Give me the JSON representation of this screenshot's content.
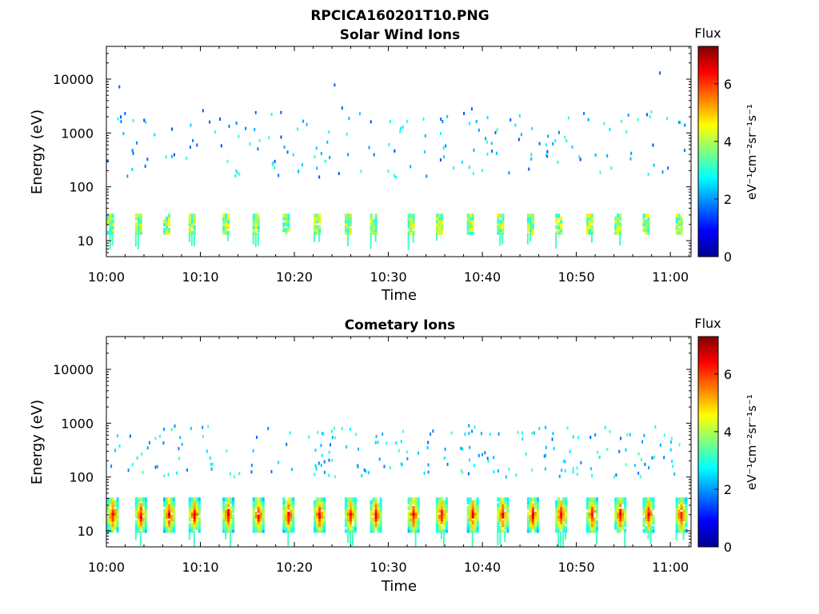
{
  "figure": {
    "filename_title": "RPCICA160201T10.PNG"
  },
  "chart_data": [
    {
      "type": "heatmap",
      "title": "Solar Wind Ions",
      "xlabel": "Time",
      "ylabel": "Energy (eV)",
      "y_scale": "log",
      "x_ticks": [
        "10:00",
        "10:10",
        "10:20",
        "10:30",
        "10:40",
        "10:50",
        "11:00"
      ],
      "y_ticks": [
        "10",
        "100",
        "1000",
        "10000"
      ],
      "colorbar": {
        "title": "Flux",
        "unit": "eV⁻¹cm⁻²sr⁻¹s⁻¹",
        "ticks": [
          "0",
          "2",
          "4",
          "6"
        ],
        "range": [
          0,
          7.3
        ],
        "colormap": "jet"
      },
      "grid": false,
      "cycles_minutes": [
        0.5,
        3.5,
        6.5,
        9.2,
        12.8,
        16.0,
        19.2,
        22.5,
        25.8,
        28.5,
        32.5,
        35.5,
        38.8,
        42.0,
        45.2,
        48.2,
        51.5,
        54.5,
        57.5,
        61.0
      ],
      "low_band_eV": [
        14,
        32
      ],
      "low_band_level": 3.6,
      "scatter_minutes": [
        1,
        2,
        3,
        4,
        5,
        6,
        7,
        8,
        9,
        10,
        11,
        12,
        13,
        16,
        17,
        18,
        19,
        20,
        21,
        22,
        23,
        24,
        25,
        26,
        27,
        28,
        29,
        30,
        31,
        32,
        33,
        34,
        35,
        36,
        37,
        38,
        39,
        40,
        41,
        42,
        43,
        44,
        45,
        46,
        47,
        48,
        54,
        55,
        56,
        57,
        58,
        59,
        60,
        61
      ],
      "scatter_energy_range_eV": [
        150,
        2500
      ],
      "scatter_level": 2.3
    },
    {
      "type": "heatmap",
      "title": "Cometary Ions",
      "xlabel": "Time",
      "ylabel": "Energy (eV)",
      "y_scale": "log",
      "x_ticks": [
        "10:00",
        "10:10",
        "10:20",
        "10:30",
        "10:40",
        "10:50",
        "11:00"
      ],
      "y_ticks": [
        "10",
        "100",
        "1000",
        "10000"
      ],
      "colorbar": {
        "title": "Flux",
        "unit": "eV⁻¹cm⁻²sr⁻¹s⁻¹",
        "ticks": [
          "0",
          "2",
          "4",
          "6"
        ],
        "range": [
          0,
          7.3
        ],
        "colormap": "jet"
      },
      "grid": false,
      "cycles_minutes": [
        0.5,
        3.5,
        6.5,
        9.2,
        12.8,
        16.0,
        19.2,
        22.5,
        25.8,
        28.5,
        32.5,
        35.5,
        38.8,
        42.0,
        45.2,
        48.2,
        51.5,
        54.5,
        57.5,
        61.0
      ],
      "low_band_eV": [
        10,
        40
      ],
      "low_band_peak_level": 6.6,
      "scatter_energy_range_eV": [
        100,
        900
      ],
      "scatter_level": 2.5
    }
  ]
}
